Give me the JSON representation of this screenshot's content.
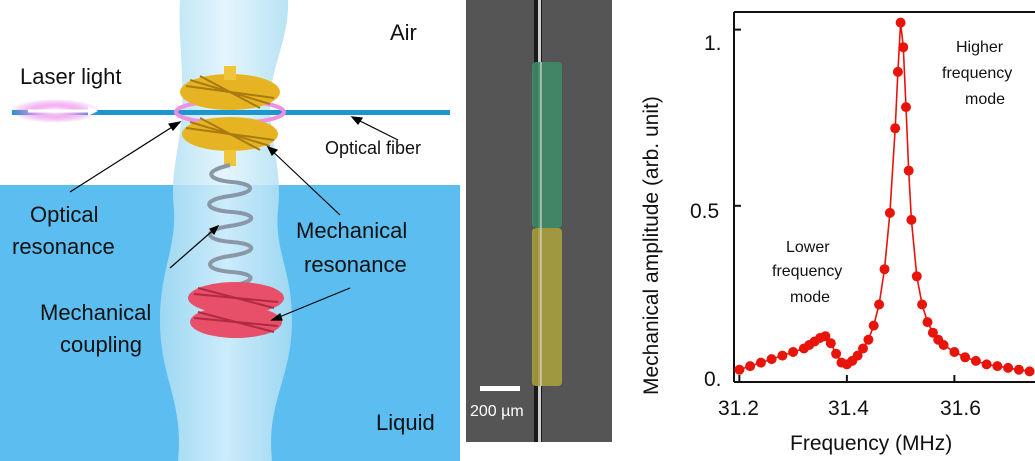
{
  "schematic": {
    "air_label": "Air",
    "liquid_label": "Liquid",
    "laser_label": "Laser light",
    "fiber_label": "Optical fiber",
    "optical_res_line1": "Optical",
    "optical_res_line2": "resonance",
    "mech_res_line1": "Mechanical",
    "mech_res_line2": "resonance",
    "mech_coup_line1": "Mechanical",
    "mech_coup_line2": "coupling",
    "colors": {
      "air": "#ffffff",
      "liquid": "#5bbdf0",
      "fiber": "#1d96d0",
      "body": "#c8ecf8",
      "gear_top": "#e6b422",
      "gear_bottom": "#e8506a",
      "spring": "#8a97a8"
    }
  },
  "micrograph": {
    "scale_label": "200 µm",
    "colors": {
      "background": "#555555",
      "green_segment": "#3f8b66",
      "yellow_segment": "#a7a03e"
    }
  },
  "chart": {
    "ylabel": "Mechanical amplitude (arb. unit)",
    "xlabel": "Frequency (MHz)",
    "ytick_labels": [
      "0.",
      "0.5",
      "1."
    ],
    "xtick_labels": [
      "31.2",
      "31.4",
      "31.6"
    ],
    "ann_low_1": "Lower",
    "ann_low_2": "frequency",
    "ann_low_3": "mode",
    "ann_high_1": "Higher",
    "ann_high_2": "frequency",
    "ann_high_3": "mode"
  },
  "chart_data": {
    "type": "scatter",
    "xlabel": "Frequency (MHz)",
    "ylabel": "Mechanical amplitude (arb. unit)",
    "xlim": [
      31.19,
      31.75
    ],
    "ylim": [
      0,
      1.05
    ],
    "xticks": [
      31.2,
      31.4,
      31.6
    ],
    "yticks": [
      0,
      0.5,
      1.0
    ],
    "marker_color": "#e8140a",
    "series": [
      {
        "x": [
          31.2,
          31.22,
          31.24,
          31.26,
          31.28,
          31.3,
          31.32,
          31.33,
          31.34,
          31.35,
          31.36,
          31.37,
          31.38,
          31.39,
          31.4,
          31.41,
          31.42,
          31.43,
          31.44,
          31.45,
          31.46,
          31.47,
          31.48,
          31.49,
          31.495,
          31.5,
          31.505,
          31.51,
          31.515,
          31.52,
          31.53,
          31.54,
          31.55,
          31.56,
          31.57,
          31.58,
          31.6,
          31.62,
          31.64,
          31.66,
          31.68,
          31.7,
          31.72,
          31.74
        ],
        "y": [
          0.035,
          0.045,
          0.055,
          0.065,
          0.075,
          0.085,
          0.095,
          0.105,
          0.115,
          0.125,
          0.13,
          0.11,
          0.08,
          0.055,
          0.05,
          0.06,
          0.075,
          0.095,
          0.12,
          0.16,
          0.22,
          0.32,
          0.48,
          0.72,
          0.88,
          1.02,
          0.95,
          0.78,
          0.6,
          0.46,
          0.3,
          0.22,
          0.17,
          0.14,
          0.12,
          0.105,
          0.085,
          0.07,
          0.06,
          0.05,
          0.045,
          0.04,
          0.035,
          0.03
        ]
      }
    ]
  }
}
